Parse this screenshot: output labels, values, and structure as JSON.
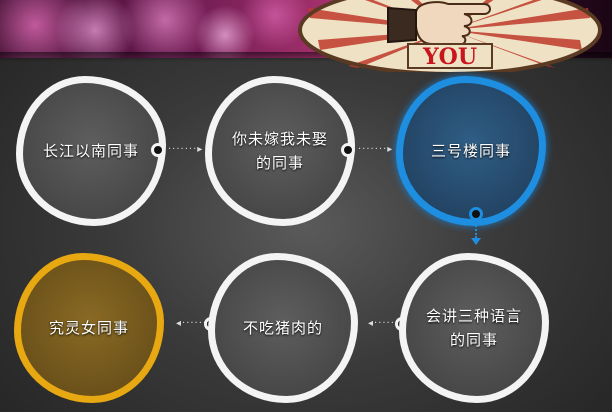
{
  "banner": {
    "badge_text": "YOU"
  },
  "steps": [
    {
      "label": "长江以南同事"
    },
    {
      "label": "你未嫁我未娶的同事"
    },
    {
      "label": "三号楼同事"
    },
    {
      "label": "会讲三种语言的同事"
    },
    {
      "label": "不吃猪肉的"
    },
    {
      "label": "究灵女同事"
    }
  ],
  "colors": {
    "node_border_default": "#f4f4f4",
    "node_border_highlight": "#1e8fe0",
    "node_border_final": "#e7a812",
    "badge_text": "#c8161d"
  }
}
